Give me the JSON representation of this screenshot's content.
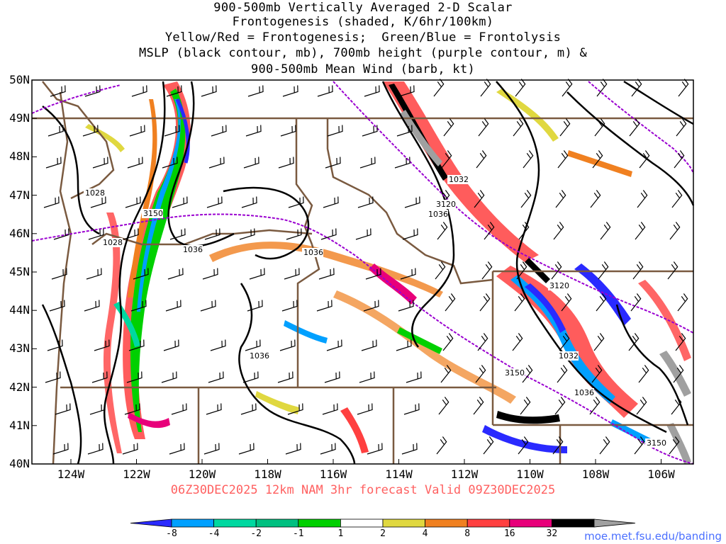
{
  "title_lines": [
    "900-500mb Vertically Averaged 2-D Scalar",
    "Frontogenesis (shaded, K/6hr/100km)",
    "Yellow/Red = Frontogenesis;  Green/Blue = Frontolysis",
    "MSLP (black contour, mb), 700mb height (purple contour, m) &",
    "900-500mb Mean Wind (barb, kt)"
  ],
  "latitudes": [
    "50N",
    "49N",
    "48N",
    "47N",
    "46N",
    "45N",
    "44N",
    "43N",
    "42N",
    "41N",
    "40N"
  ],
  "longitudes": [
    "124W",
    "122W",
    "120W",
    "118W",
    "116W",
    "114W",
    "112W",
    "110W",
    "108W",
    "106W"
  ],
  "contour_labels": {
    "mslp": [
      "1028",
      "1028",
      "1036",
      "1036",
      "1032",
      "1036",
      "1036",
      "1032",
      "1036"
    ],
    "height": [
      "3150",
      "3120",
      "3120",
      "3150",
      "3150"
    ]
  },
  "valid_line": "06Z30DEC2025 12km NAM 3hr forecast Valid 09Z30DEC2025",
  "colorbar": {
    "labels": [
      "-8",
      "-4",
      "-2",
      "-1",
      "1",
      "2",
      "4",
      "8",
      "16",
      "32"
    ],
    "colors": [
      "#2a2aff",
      "#00a0ff",
      "#00d8a0",
      "#00c080",
      "#00d000",
      "#ffffff",
      "#e0d840",
      "#f08020",
      "#ff4040",
      "#e8007a",
      "#000000",
      "#a0a0a0"
    ]
  },
  "credit": "moe.met.fsu.edu/banding",
  "colors": {
    "state_border": "#7a5a40",
    "mslp": "#000000",
    "height": "#9a00d0",
    "valid_text": "#ff6060",
    "credit_text": "#4a6fff"
  }
}
